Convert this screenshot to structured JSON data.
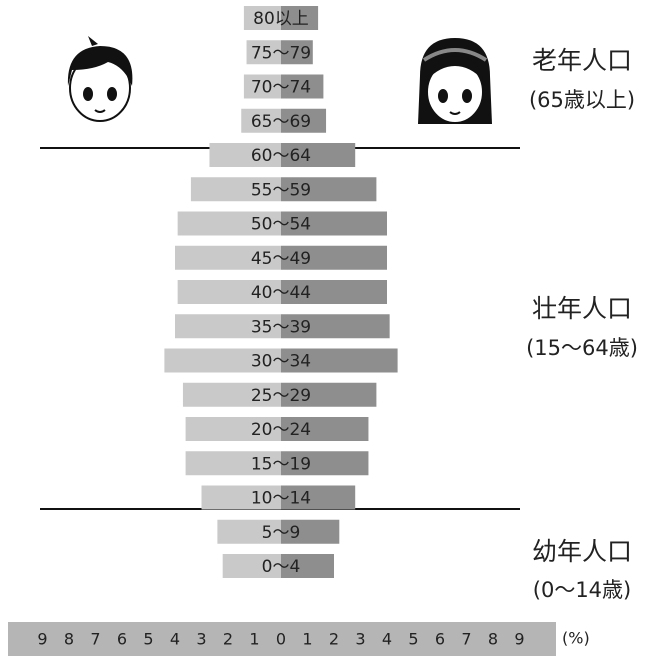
{
  "chart_data": {
    "type": "population_pyramid",
    "categories": [
      "80以上",
      "75～79",
      "70～74",
      "65～69",
      "60～64",
      "55～59",
      "50～54",
      "45～49",
      "40～44",
      "35～39",
      "30～34",
      "25～29",
      "20～24",
      "15～19",
      "10～14",
      "5～9",
      "0～4"
    ],
    "series": [
      {
        "color": "#c9c9c9",
        "values": [
          1.4,
          1.3,
          1.4,
          1.5,
          2.7,
          3.4,
          3.9,
          4.0,
          3.9,
          4.0,
          4.4,
          3.7,
          3.6,
          3.6,
          3.0,
          2.4,
          2.2
        ]
      },
      {
        "color": "#8e8e8e",
        "values": [
          1.4,
          1.2,
          1.6,
          1.7,
          2.8,
          3.6,
          4.0,
          4.0,
          4.0,
          4.1,
          4.4,
          3.6,
          3.3,
          3.3,
          2.8,
          2.2,
          2.0
        ]
      }
    ],
    "xlim": [
      -10,
      10
    ],
    "xticks": [
      {
        "value": -9,
        "label": "9"
      },
      {
        "value": -8,
        "label": "8"
      },
      {
        "value": -7,
        "label": "7"
      },
      {
        "value": -6,
        "label": "6"
      },
      {
        "value": -5,
        "label": "5"
      },
      {
        "value": -4,
        "label": "4"
      },
      {
        "value": -3,
        "label": "3"
      },
      {
        "value": -2,
        "label": "2"
      },
      {
        "value": -1,
        "label": "1"
      },
      0,
      1,
      2,
      3,
      4,
      5,
      6,
      7,
      8,
      9
    ],
    "x_unit": "(%)",
    "annotations": [
      {
        "title": "老年人口",
        "subtitle": "(65歳以上)"
      },
      {
        "title": "壮年人口",
        "subtitle": "(15～64歳)"
      },
      {
        "title": "幼年人口",
        "subtitle": "(0～14歳)"
      }
    ]
  }
}
